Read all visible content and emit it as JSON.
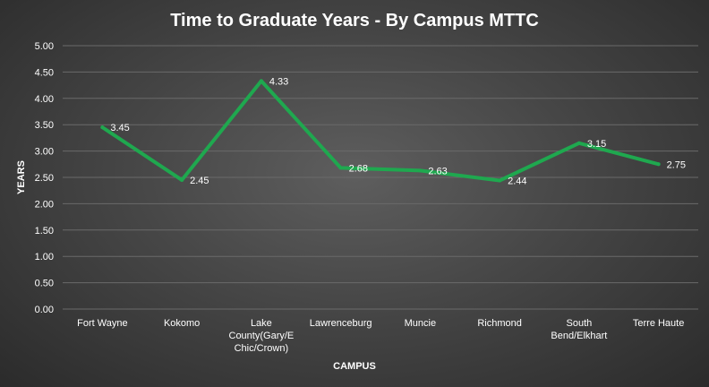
{
  "chart_data": {
    "type": "line",
    "title": "Time to Graduate Years - By Campus MTTC",
    "xlabel": "CAMPUS",
    "ylabel": "YEARS",
    "ylim": [
      0,
      5
    ],
    "yticks": [
      "0.00",
      "0.50",
      "1.00",
      "1.50",
      "2.00",
      "2.50",
      "3.00",
      "3.50",
      "4.00",
      "4.50",
      "5.00"
    ],
    "categories": [
      [
        "Fort Wayne"
      ],
      [
        "Kokomo"
      ],
      [
        "Lake",
        "County(Gary/E",
        "Chic/Crown)"
      ],
      [
        "Lawrenceburg"
      ],
      [
        "Muncie"
      ],
      [
        "Richmond"
      ],
      [
        "South",
        "Bend/Elkhart"
      ],
      [
        "Terre Haute"
      ]
    ],
    "series": [
      {
        "values": [
          3.45,
          2.45,
          4.33,
          2.68,
          2.63,
          2.44,
          3.15,
          2.75
        ],
        "labels": [
          "3.45",
          "2.45",
          "4.33",
          "2.68",
          "2.63",
          "2.44",
          "3.15",
          "2.75"
        ],
        "color": "#1fa84f"
      }
    ],
    "grid": true,
    "legend": "none",
    "colors": {
      "gridline": "#6a6a6a",
      "text": "#ffffff"
    }
  }
}
